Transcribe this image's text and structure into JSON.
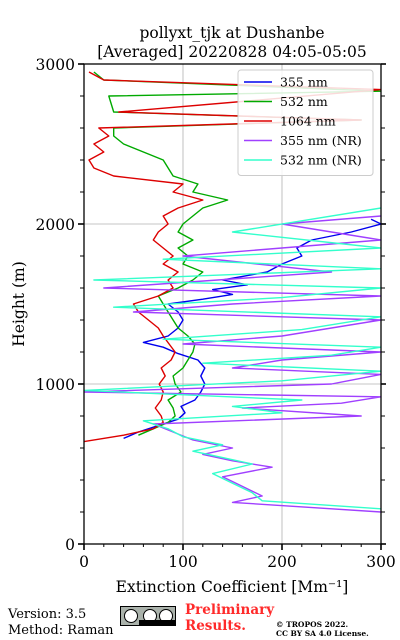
{
  "chart_data": {
    "type": "line",
    "title": "pollyxt_tjk at Dushanbe",
    "subtitle": "[Averaged] 20220828 04:05-05:05",
    "xlabel": "Extinction Coefficient [Mm⁻¹]",
    "ylabel": "Height (m)",
    "xlim": [
      0,
      300
    ],
    "ylim": [
      0,
      3000
    ],
    "xticks": [
      0,
      100,
      200,
      300
    ],
    "yticks": [
      0,
      1000,
      2000,
      3000
    ],
    "grid": true,
    "legend_position": "top-right",
    "series": [
      {
        "name": "355 nm",
        "color": "#0000ee",
        "points": [
          [
            40,
            660
          ],
          [
            55,
            700
          ],
          [
            75,
            740
          ],
          [
            95,
            780
          ],
          [
            102,
            820
          ],
          [
            98,
            860
          ],
          [
            112,
            900
          ],
          [
            118,
            950
          ],
          [
            122,
            1000
          ],
          [
            118,
            1050
          ],
          [
            122,
            1100
          ],
          [
            115,
            1150
          ],
          [
            95,
            1190
          ],
          [
            80,
            1230
          ],
          [
            60,
            1260
          ],
          [
            85,
            1300
          ],
          [
            95,
            1350
          ],
          [
            100,
            1400
          ],
          [
            95,
            1450
          ],
          [
            85,
            1500
          ],
          [
            120,
            1530
          ],
          [
            150,
            1560
          ],
          [
            130,
            1590
          ],
          [
            165,
            1620
          ],
          [
            140,
            1650
          ],
          [
            185,
            1700
          ],
          [
            200,
            1750
          ],
          [
            220,
            1800
          ],
          [
            215,
            1850
          ],
          [
            230,
            1900
          ],
          [
            270,
            1950
          ],
          [
            300,
            2000
          ],
          [
            290,
            2030
          ]
        ]
      },
      {
        "name": "532 nm",
        "color": "#00aa00",
        "points": [
          [
            55,
            680
          ],
          [
            70,
            720
          ],
          [
            85,
            760
          ],
          [
            92,
            800
          ],
          [
            90,
            850
          ],
          [
            85,
            900
          ],
          [
            98,
            950
          ],
          [
            92,
            1000
          ],
          [
            90,
            1050
          ],
          [
            100,
            1100
          ],
          [
            105,
            1150
          ],
          [
            110,
            1200
          ],
          [
            112,
            1250
          ],
          [
            105,
            1300
          ],
          [
            95,
            1350
          ],
          [
            90,
            1400
          ],
          [
            85,
            1450
          ],
          [
            80,
            1500
          ],
          [
            75,
            1550
          ],
          [
            95,
            1600
          ],
          [
            110,
            1650
          ],
          [
            120,
            1700
          ],
          [
            100,
            1750
          ],
          [
            105,
            1800
          ],
          [
            95,
            1850
          ],
          [
            110,
            1900
          ],
          [
            95,
            1950
          ],
          [
            100,
            2000
          ],
          [
            110,
            2050
          ],
          [
            120,
            2100
          ],
          [
            145,
            2150
          ],
          [
            110,
            2200
          ],
          [
            115,
            2250
          ],
          [
            90,
            2300
          ],
          [
            80,
            2400
          ],
          [
            40,
            2500
          ],
          [
            30,
            2550
          ],
          [
            30,
            2600
          ],
          [
            280,
            2650
          ],
          [
            30,
            2700
          ],
          [
            25,
            2800
          ],
          [
            300,
            2830
          ],
          [
            20,
            2900
          ],
          [
            10,
            2950
          ]
        ]
      },
      {
        "name": "1064 nm",
        "color": "#dd0000",
        "points": [
          [
            0,
            640
          ],
          [
            40,
            680
          ],
          [
            70,
            720
          ],
          [
            80,
            760
          ],
          [
            78,
            800
          ],
          [
            72,
            850
          ],
          [
            78,
            900
          ],
          [
            80,
            950
          ],
          [
            76,
            1000
          ],
          [
            82,
            1050
          ],
          [
            78,
            1100
          ],
          [
            88,
            1150
          ],
          [
            92,
            1200
          ],
          [
            86,
            1250
          ],
          [
            80,
            1300
          ],
          [
            75,
            1350
          ],
          [
            65,
            1400
          ],
          [
            55,
            1450
          ],
          [
            50,
            1500
          ],
          [
            75,
            1550
          ],
          [
            90,
            1600
          ],
          [
            85,
            1650
          ],
          [
            95,
            1700
          ],
          [
            80,
            1750
          ],
          [
            90,
            1800
          ],
          [
            80,
            1850
          ],
          [
            70,
            1900
          ],
          [
            75,
            1950
          ],
          [
            85,
            2000
          ],
          [
            80,
            2050
          ],
          [
            95,
            2100
          ],
          [
            120,
            2150
          ],
          [
            90,
            2200
          ],
          [
            100,
            2250
          ],
          [
            30,
            2300
          ],
          [
            10,
            2350
          ],
          [
            5,
            2400
          ],
          [
            20,
            2450
          ],
          [
            10,
            2500
          ],
          [
            25,
            2550
          ],
          [
            15,
            2600
          ],
          [
            280,
            2650
          ],
          [
            35,
            2700
          ],
          [
            300,
            2840
          ],
          [
            20,
            2900
          ],
          [
            5,
            2950
          ]
        ]
      },
      {
        "name": "355 nm (NR)",
        "color": "#a040ff",
        "points": [
          [
            300,
            200
          ],
          [
            150,
            260
          ],
          [
            180,
            300
          ],
          [
            160,
            360
          ],
          [
            140,
            420
          ],
          [
            190,
            480
          ],
          [
            150,
            520
          ],
          [
            120,
            560
          ],
          [
            150,
            600
          ],
          [
            110,
            650
          ],
          [
            90,
            700
          ],
          [
            70,
            750
          ],
          [
            280,
            800
          ],
          [
            160,
            850
          ],
          [
            260,
            880
          ],
          [
            300,
            920
          ],
          [
            0,
            950
          ],
          [
            250,
            1000
          ],
          [
            300,
            1060
          ],
          [
            150,
            1100
          ],
          [
            200,
            1150
          ],
          [
            300,
            1200
          ],
          [
            100,
            1250
          ],
          [
            200,
            1300
          ],
          [
            300,
            1400
          ],
          [
            50,
            1450
          ],
          [
            150,
            1500
          ],
          [
            300,
            1550
          ],
          [
            20,
            1600
          ],
          [
            250,
            1700
          ],
          [
            100,
            1800
          ],
          [
            300,
            1900
          ],
          [
            200,
            2000
          ],
          [
            300,
            2050
          ]
        ]
      },
      {
        "name": "532 nm (NR)",
        "color": "#33ffcc",
        "points": [
          [
            300,
            220
          ],
          [
            180,
            270
          ],
          [
            170,
            320
          ],
          [
            150,
            380
          ],
          [
            130,
            440
          ],
          [
            170,
            500
          ],
          [
            140,
            540
          ],
          [
            110,
            580
          ],
          [
            140,
            620
          ],
          [
            100,
            670
          ],
          [
            85,
            720
          ],
          [
            60,
            770
          ],
          [
            200,
            820
          ],
          [
            150,
            860
          ],
          [
            220,
            900
          ],
          [
            0,
            960
          ],
          [
            200,
            1020
          ],
          [
            300,
            1080
          ],
          [
            120,
            1130
          ],
          [
            250,
            1180
          ],
          [
            300,
            1230
          ],
          [
            80,
            1280
          ],
          [
            220,
            1340
          ],
          [
            300,
            1420
          ],
          [
            30,
            1480
          ],
          [
            200,
            1540
          ],
          [
            300,
            1600
          ],
          [
            10,
            1650
          ],
          [
            300,
            1720
          ],
          [
            80,
            1780
          ],
          [
            300,
            1850
          ],
          [
            150,
            1950
          ],
          [
            300,
            2100
          ]
        ]
      }
    ]
  },
  "footer": {
    "version": "Version: 3.5",
    "method": "Method: Raman",
    "preliminary_line1": "Preliminary",
    "preliminary_line2": "Results.",
    "copyright_line1": "© TROPOS 2022.",
    "copyright_line2": "CC BY SA 4.0 License."
  }
}
